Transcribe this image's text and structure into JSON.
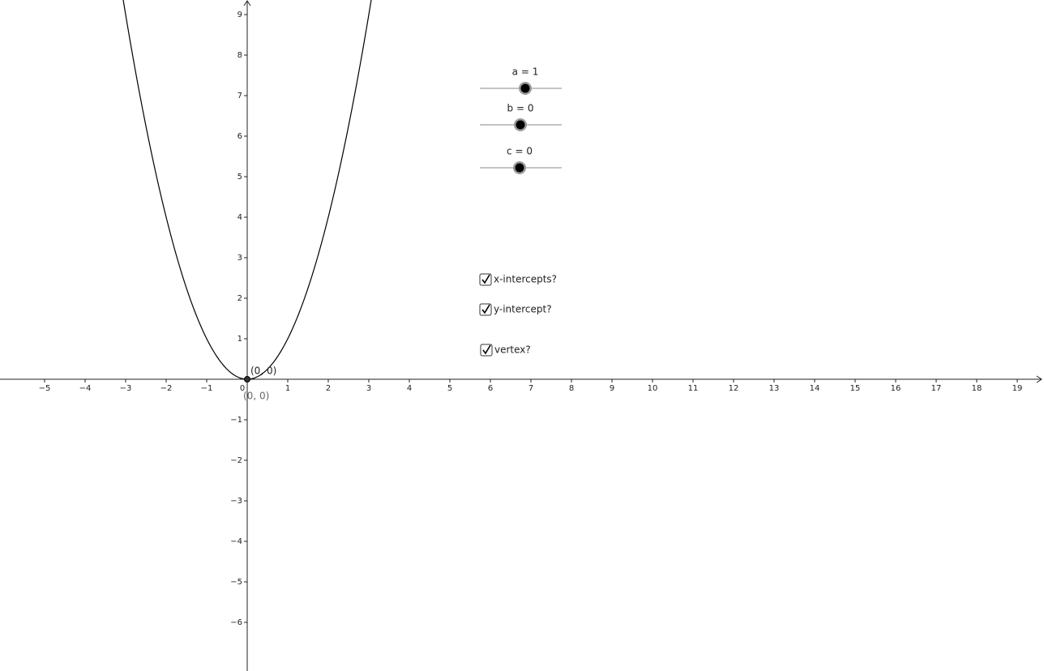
{
  "graph": {
    "xticks": [
      {
        "value": -5,
        "label": "−5"
      },
      {
        "value": -4,
        "label": "−4"
      },
      {
        "value": -3,
        "label": "−3"
      },
      {
        "value": -2,
        "label": "−2"
      },
      {
        "value": -1,
        "label": "−1"
      },
      0,
      1,
      2,
      3,
      4,
      5,
      6,
      7,
      8,
      9,
      10,
      11,
      12,
      13,
      14,
      15,
      16,
      17,
      18,
      19
    ],
    "yticks": [
      {
        "value": -6,
        "label": "−6"
      },
      {
        "value": -5,
        "label": "−5"
      },
      {
        "value": -4,
        "label": "−4"
      },
      {
        "value": -3,
        "label": "−3"
      },
      {
        "value": -2,
        "label": "−2"
      },
      {
        "value": -1,
        "label": "−1"
      },
      1,
      2,
      3,
      4,
      5,
      6,
      7,
      8,
      9
    ],
    "points": [
      {
        "x": 0,
        "y": 0,
        "label": "(0, 0)"
      },
      {
        "x": 0,
        "y": 0,
        "label": "(0, 0)"
      }
    ]
  },
  "sliders": [
    {
      "label": "a = 1",
      "value": 1
    },
    {
      "label": "b = 0",
      "value": 0
    },
    {
      "label": "c = 0",
      "value": 0
    }
  ],
  "checkboxes": [
    {
      "label": "x-intercepts?",
      "checked": true
    },
    {
      "label": "y-intercept?",
      "checked": true
    },
    {
      "label": "vertex?",
      "checked": true
    }
  ]
}
